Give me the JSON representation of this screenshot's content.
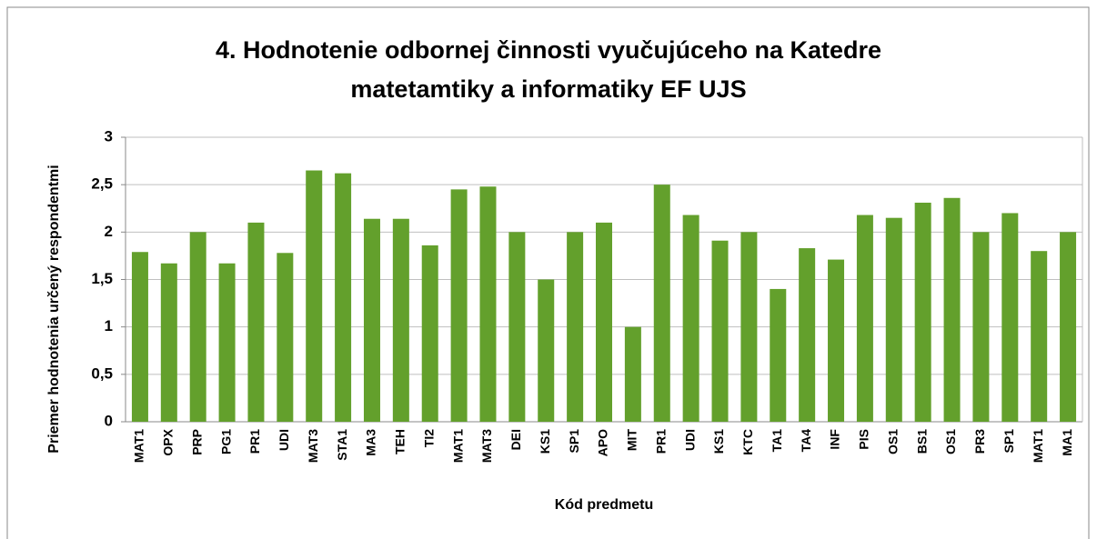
{
  "chart_data": {
    "type": "bar",
    "title": [
      "4. Hodnotenie odbornej činnosti vyučujúceho na Katedre",
      "matetamtiky a informatiky EF UJS"
    ],
    "x_label": "Kód predmetu",
    "y_label": "Priemer hodnotenia určený respondentmi",
    "categories": [
      "MAT1",
      "OPX",
      "PRP",
      "PG1",
      "PR1",
      "UDI",
      "MAT3",
      "STA1",
      "MA3",
      "TEH",
      "TI2",
      "MAT1",
      "MAT3",
      "DEI",
      "KS1",
      "SP1",
      "APO",
      "MIT",
      "PR1",
      "UDI",
      "KS1",
      "KTC",
      "TA1",
      "TA4",
      "INF",
      "PIS",
      "OS1",
      "BS1",
      "OS1",
      "PR3",
      "SP1",
      "MAT1",
      "MA1"
    ],
    "values": [
      1.79,
      1.67,
      2.0,
      1.67,
      2.1,
      1.78,
      2.65,
      2.62,
      2.14,
      2.14,
      1.86,
      2.45,
      2.48,
      2.0,
      1.5,
      2.0,
      2.1,
      1.0,
      2.5,
      2.18,
      1.91,
      2.0,
      1.4,
      1.83,
      1.71,
      2.18,
      2.15,
      2.31,
      2.36,
      2.0,
      2.2,
      1.8,
      2.0
    ],
    "color": "#63a02c",
    "ylim": [
      0,
      3
    ],
    "yticks": [
      0,
      {
        "value": 0.5,
        "label": "0,5"
      },
      1,
      {
        "value": 1.5,
        "label": "1,5"
      },
      2,
      {
        "value": 2.5,
        "label": "2,5"
      },
      3
    ],
    "grid": true
  }
}
